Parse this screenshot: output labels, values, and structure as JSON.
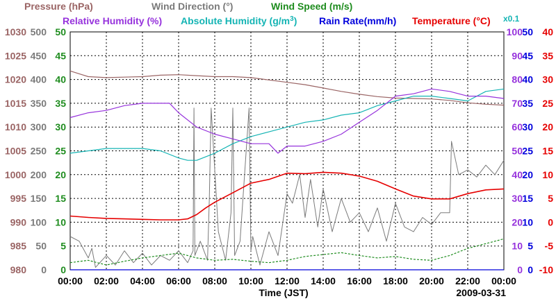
{
  "chart_data": {
    "type": "line",
    "date_label": "2009-03-31",
    "x_axis": {
      "label": "Time (JST)",
      "range_hours": [
        0,
        24
      ],
      "tick_labels": [
        "00:00",
        "02:00",
        "04:00",
        "06:00",
        "08:00",
        "10:00",
        "12:00",
        "14:00",
        "16:00",
        "18:00",
        "20:00",
        "22:00",
        "00:00"
      ]
    },
    "titles": {
      "pressure": "Pressure (hPa)",
      "wind_dir": "Wind Direction (°)",
      "wind_speed": "Wind Speed (m/s)",
      "rel_hum": "Relative Humidity (%)",
      "abs_hum": "Absolute Humidity (g/m",
      "abs_hum_sup": "3",
      "abs_hum_close": ")",
      "rain": "Rain Rate(mm/h)",
      "temp": "Temperature (°C)",
      "scale_note": "x0.1"
    },
    "axes": {
      "pressure": {
        "color": "#9a6464",
        "range": [
          980,
          1030
        ],
        "ticks": [
          "980",
          "985",
          "990",
          "995",
          "1000",
          "1005",
          "1010",
          "1015",
          "1020",
          "1025",
          "1030"
        ]
      },
      "wind_dir": {
        "color": "#7a7a7a",
        "range": [
          0,
          500
        ],
        "ticks": [
          "0",
          "50",
          "100",
          "150",
          "200",
          "250",
          "300",
          "350",
          "400",
          "450",
          "500"
        ]
      },
      "wind_speed": {
        "color": "#1e8c1e",
        "range": [
          0,
          50
        ],
        "ticks": [
          "0",
          "5",
          "10",
          "15",
          "20",
          "25",
          "30",
          "35",
          "40",
          "45",
          "50"
        ]
      },
      "rel_hum": {
        "color": "#9632dc",
        "range": [
          0,
          100
        ],
        "ticks": [
          "0",
          "10",
          "20",
          "30",
          "40",
          "50",
          "60",
          "70",
          "80",
          "90",
          "100"
        ]
      },
      "rain": {
        "color": "#0000dc",
        "range": [
          0,
          50
        ],
        "ticks": [
          "0",
          "5",
          "10",
          "15",
          "20",
          "25",
          "30",
          "35",
          "40",
          "45",
          "50"
        ]
      },
      "temp": {
        "color": "#e60000",
        "range": [
          -10,
          40
        ],
        "ticks": [
          "-10",
          "-5",
          "0",
          "5",
          "10",
          "15",
          "20",
          "25",
          "30",
          "35",
          "40"
        ]
      }
    },
    "title_colors": {
      "abs_hum": "#14b4b4"
    },
    "series": [
      {
        "name": "Pressure",
        "unit": "hPa",
        "axis": "pressure",
        "color": "#9a6464",
        "x": [
          0,
          0.5,
          1,
          2,
          3,
          4,
          5,
          6,
          7,
          8,
          9,
          10,
          11,
          12,
          13,
          14,
          15,
          16,
          17,
          18,
          19,
          20,
          21,
          22,
          23,
          24
        ],
        "values": [
          1021.8,
          1021.2,
          1020.6,
          1020.4,
          1020.5,
          1020.6,
          1020.9,
          1021.0,
          1020.8,
          1020.6,
          1020.6,
          1020.4,
          1019.9,
          1019.4,
          1018.9,
          1018.2,
          1017.5,
          1016.9,
          1016.4,
          1016.1,
          1016.0,
          1015.9,
          1015.6,
          1015.1,
          1014.8,
          1014.6
        ]
      },
      {
        "name": "Relative Humidity",
        "unit": "%",
        "axis": "rel_hum",
        "color": "#9632dc",
        "x": [
          0,
          1,
          2,
          3,
          4,
          5,
          5.5,
          6,
          7,
          8,
          9,
          10,
          11,
          11.5,
          12,
          13,
          14,
          15,
          16,
          17,
          18,
          19,
          20,
          21,
          22,
          23,
          24
        ],
        "values": [
          64,
          66,
          67,
          69,
          70,
          70,
          70,
          66,
          60,
          57,
          55,
          53,
          53,
          49,
          52,
          52,
          54,
          57,
          62,
          67,
          73,
          74,
          76,
          75,
          73,
          73,
          72
        ]
      },
      {
        "name": "Absolute Humidity",
        "unit": "g/m3 x0.1",
        "axis": "rel_hum",
        "color": "#14b4b4",
        "x": [
          0,
          1,
          2,
          3,
          4,
          5,
          6,
          6.5,
          7,
          8,
          9,
          10,
          11,
          12,
          13,
          14,
          15,
          16,
          17,
          18,
          19,
          20,
          21,
          22,
          23,
          24
        ],
        "values": [
          49,
          50,
          51,
          51,
          51,
          50,
          47,
          46,
          46,
          49,
          53,
          56,
          58,
          60,
          62,
          63,
          65,
          66,
          69,
          71,
          73,
          73,
          72,
          71,
          75,
          76
        ]
      },
      {
        "name": "Temperature",
        "unit": "°C",
        "axis": "temp",
        "color": "#e60000",
        "x": [
          0,
          1,
          2,
          3,
          4,
          5,
          6,
          6.5,
          7,
          7.5,
          8,
          9,
          10,
          11,
          12,
          13,
          14,
          15,
          16,
          17,
          18,
          19,
          20,
          21,
          22,
          23,
          24
        ],
        "values": [
          1.3,
          1.0,
          0.8,
          0.7,
          0.6,
          0.5,
          0.5,
          0.7,
          1.6,
          3.0,
          4.2,
          6.2,
          8.2,
          9.0,
          10.3,
          10.2,
          10.5,
          10.3,
          9.7,
          8.6,
          7.0,
          5.5,
          4.9,
          4.9,
          6.0,
          6.8,
          7.0
        ]
      },
      {
        "name": "Wind Direction",
        "unit": "°",
        "axis": "wind_dir",
        "color": "#7a7a7a",
        "x": [
          0,
          0.5,
          1,
          1.2,
          1.4,
          2,
          2.5,
          3,
          3.5,
          4,
          4.5,
          5,
          5.5,
          6,
          6.5,
          6.8,
          6.85,
          6.9,
          7.2,
          7.6,
          7.7,
          7.8,
          8.2,
          8.6,
          8.9,
          9.0,
          9.1,
          9.4,
          9.9,
          10.0,
          10.1,
          10.5,
          11,
          11.5,
          12,
          12.3,
          12.7,
          13,
          13.3,
          13.7,
          14,
          14.5,
          15,
          15.5,
          16,
          16.5,
          17,
          17.5,
          18,
          18.5,
          19,
          19.5,
          20,
          20.5,
          21,
          21.1,
          21.5,
          22,
          22.5,
          23,
          23.5,
          24
        ],
        "values": [
          70,
          60,
          25,
          45,
          5,
          30,
          10,
          40,
          15,
          35,
          10,
          30,
          20,
          40,
          15,
          40,
          340,
          30,
          60,
          20,
          150,
          340,
          80,
          20,
          120,
          340,
          30,
          60,
          340,
          40,
          70,
          10,
          80,
          30,
          160,
          140,
          200,
          110,
          190,
          90,
          170,
          80,
          150,
          100,
          120,
          80,
          130,
          60,
          140,
          90,
          80,
          110,
          95,
          120,
          120,
          270,
          200,
          210,
          195,
          220,
          200,
          230
        ]
      },
      {
        "name": "Wind Speed",
        "unit": "m/s",
        "axis": "wind_speed",
        "color": "#1e8c1e",
        "x": [
          0,
          1,
          2,
          3,
          4,
          5,
          6,
          7,
          8,
          9,
          10,
          11,
          12,
          13,
          14,
          15,
          16,
          17,
          18,
          19,
          20,
          21,
          22,
          23,
          24
        ],
        "values": [
          1.5,
          2.0,
          1.0,
          1.8,
          2.5,
          3.0,
          3.5,
          2.5,
          2.0,
          2.2,
          1.8,
          1.5,
          2.0,
          2.8,
          3.2,
          3.6,
          3.0,
          2.5,
          2.8,
          2.2,
          2.0,
          3.0,
          4.5,
          5.5,
          6.5
        ]
      },
      {
        "name": "Rain Rate",
        "unit": "mm/h",
        "axis": "rain",
        "color": "#0000dc",
        "x": [
          0,
          24
        ],
        "values": [
          0,
          0
        ]
      }
    ]
  }
}
